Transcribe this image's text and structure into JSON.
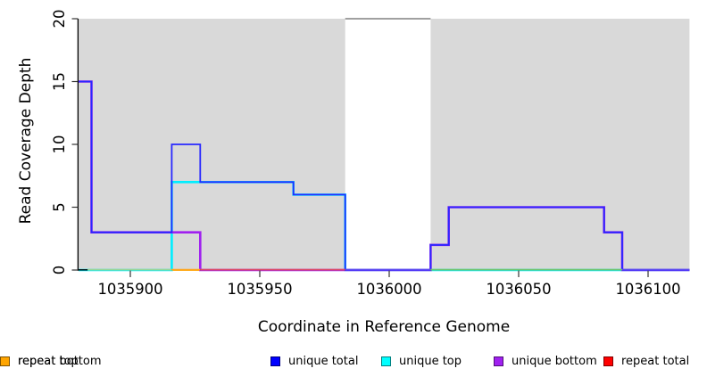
{
  "chart_data": {
    "type": "line",
    "subtype": "step-coverage",
    "title": "",
    "xlabel": "Coordinate in Reference Genome",
    "ylabel": "Read Coverage Depth",
    "xlim": [
      1035880,
      1036116
    ],
    "ylim": [
      0,
      20
    ],
    "x_ticks": [
      1035900,
      1035950,
      1036000,
      1036050,
      1036100
    ],
    "y_ticks": [
      0,
      5,
      10,
      15,
      20
    ],
    "grid": false,
    "plot_background": "#ffffff",
    "shaded_regions": [
      {
        "x1": 1035880,
        "x2": 1035983,
        "color": "#d9d9d9"
      },
      {
        "x1": 1036016,
        "x2": 1036116,
        "color": "#d9d9d9"
      }
    ],
    "gap_top_line": {
      "x1": 1035983,
      "x2": 1036016,
      "y": 20,
      "color": "#808080"
    },
    "series": [
      {
        "name": "repeat total",
        "color": "#ff0000",
        "breaks": [
          1035880,
          1036116
        ],
        "values": [
          0
        ]
      },
      {
        "name": "repeat top",
        "color": "#ffff00",
        "breaks": [
          1035880,
          1036116
        ],
        "values": [
          0
        ]
      },
      {
        "name": "repeat bottom",
        "color": "#ffa500",
        "breaks": [
          1035880,
          1036116
        ],
        "values": [
          0
        ]
      },
      {
        "name": "unique top",
        "color": "#00eeff",
        "breaks": [
          1035880,
          1035916,
          1035963,
          1035983,
          1036116
        ],
        "values": [
          0,
          7,
          6,
          0
        ]
      },
      {
        "name": "unique bottom",
        "color": "#a020f0",
        "breaks": [
          1035880,
          1035885,
          1035927,
          1036016,
          1036023,
          1036083,
          1036090,
          1036116
        ],
        "values": [
          15,
          3,
          0,
          2,
          5,
          3,
          0
        ]
      },
      {
        "name": "unique total",
        "color": "#2828ff",
        "breaks": [
          1035880,
          1035885,
          1035916,
          1035927,
          1035963,
          1035983,
          1036016,
          1036023,
          1036083,
          1036090,
          1036116
        ],
        "values": [
          15,
          3,
          10,
          7,
          6,
          0,
          2,
          5,
          3,
          0
        ]
      }
    ],
    "baseline_overlap_segments": [
      {
        "x1": 1035883.5,
        "x2": 1035916,
        "color": "#98d697"
      },
      {
        "x1": 1035916,
        "x2": 1035927,
        "color": "#ffa51e"
      },
      {
        "x1": 1035927,
        "x2": 1035983,
        "color": "#dc4a66"
      },
      {
        "x1": 1035983,
        "x2": 1036016,
        "color": "#5c49f0"
      },
      {
        "x1": 1036016,
        "x2": 1036090,
        "color": "#6fc46f"
      },
      {
        "x1": 1036090,
        "x2": 1036116,
        "color": "#5c49f0"
      }
    ],
    "legend": {
      "position": "bottom",
      "items": [
        {
          "label": "unique total",
          "color": "#0000ff"
        },
        {
          "label": "unique top",
          "color": "#00ffff"
        },
        {
          "label": "unique bottom",
          "color": "#a020f0"
        },
        {
          "label": "repeat total",
          "color": "#ff0000"
        },
        {
          "label": "repeat top",
          "color": "#ffff00"
        },
        {
          "label": "repeat bottom",
          "color": "#ffa500"
        }
      ]
    }
  }
}
